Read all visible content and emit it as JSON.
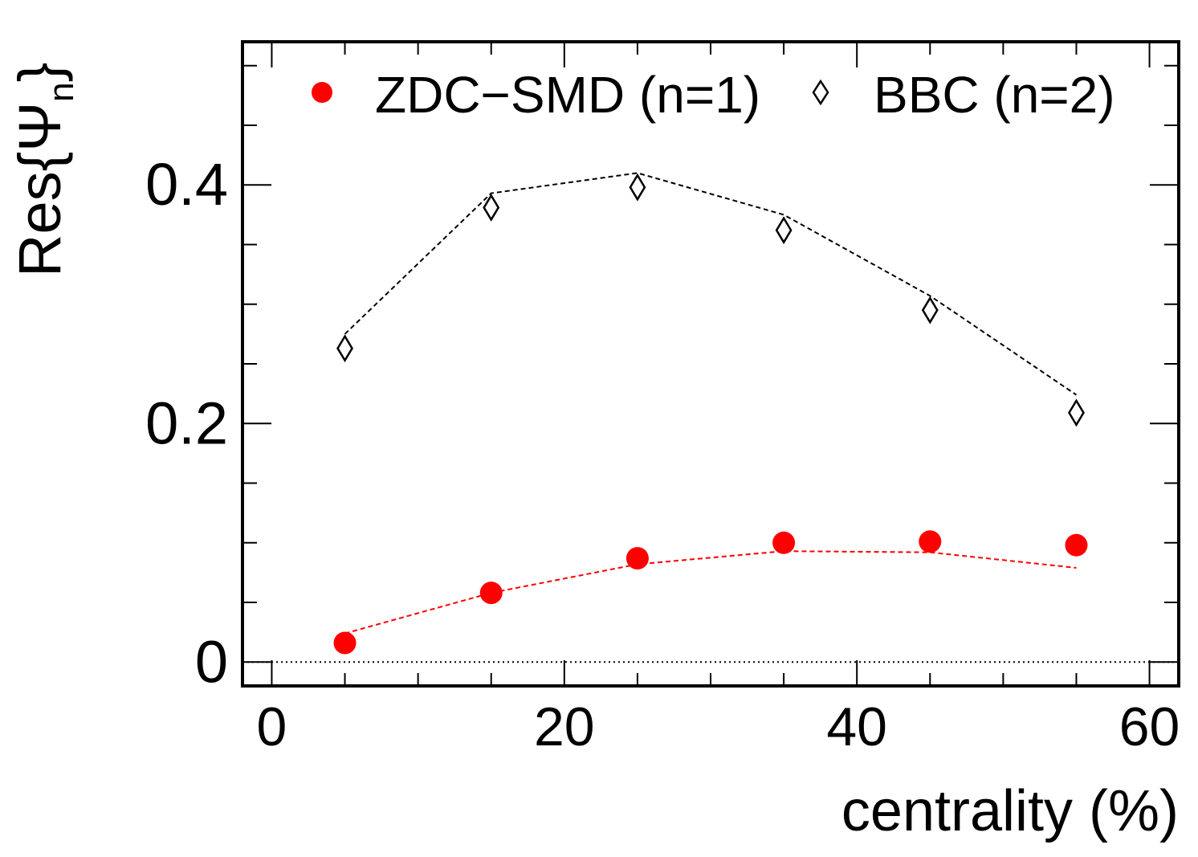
{
  "chart_data": {
    "type": "scatter",
    "xlabel": "centrality (%)",
    "ylabel": "Res{Ψ",
    "ylabel_sub": "n",
    "ylabel_close": "}",
    "xlim": [
      -2,
      62
    ],
    "ylim": [
      -0.02,
      0.52
    ],
    "x_ticks": [
      0,
      20,
      40,
      60
    ],
    "x_tick_labels": [
      "0",
      "20",
      "40",
      "60"
    ],
    "y_ticks": [
      0,
      0.2,
      0.4
    ],
    "y_tick_labels": [
      "0",
      "0.2",
      "0.4"
    ],
    "grid": false,
    "legend_position": "top",
    "reference_line_y": 0,
    "series": [
      {
        "name": "ZDC−SMD (n=1)",
        "marker": "filled-circle",
        "color": "#ff0000",
        "x": [
          5,
          15,
          25,
          35,
          45,
          55
        ],
        "y": [
          0.016,
          0.058,
          0.087,
          0.1,
          0.101,
          0.098
        ],
        "fit": {
          "style": "dashed",
          "x": [
            5,
            15,
            25,
            35,
            45,
            55
          ],
          "y": [
            0.024,
            0.058,
            0.082,
            0.093,
            0.092,
            0.079
          ]
        }
      },
      {
        "name": "BBC (n=2)",
        "marker": "open-diamond",
        "color": "#000000",
        "x": [
          5,
          15,
          25,
          35,
          45,
          55
        ],
        "y": [
          0.263,
          0.381,
          0.398,
          0.362,
          0.295,
          0.209
        ],
        "fit": {
          "style": "dashed",
          "x": [
            5,
            15,
            25,
            35,
            45,
            55
          ],
          "y": [
            0.275,
            0.393,
            0.41,
            0.375,
            0.307,
            0.224
          ]
        }
      }
    ]
  }
}
